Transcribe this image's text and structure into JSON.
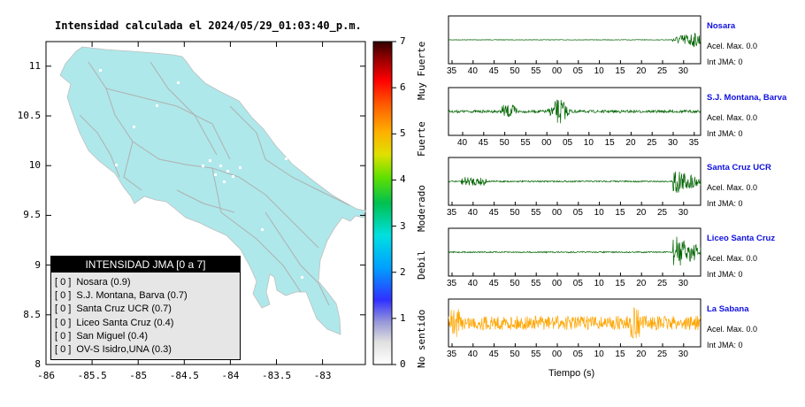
{
  "map": {
    "title": "Intensidad calculada el 2024/05/29_01:03:40_p.m.",
    "lon_ticks": [
      "-86",
      "-85.5",
      "-85",
      "-84.5",
      "-84",
      "-83.5",
      "-83"
    ],
    "lat_ticks": [
      "8",
      "8.5",
      "9",
      "9.5",
      "10",
      "10.5",
      "11"
    ],
    "land_color": "#aee8ea"
  },
  "colorbar": {
    "ticks": [
      "0",
      "1",
      "2",
      "3",
      "4",
      "5",
      "6",
      "7"
    ],
    "categories": [
      "No sentido",
      "Debil",
      "Moderado",
      "Fuerte",
      "Muy Fuerte"
    ]
  },
  "legend": {
    "title": "INTENSIDAD JMA [0 a 7]",
    "items": [
      {
        "jma": "[ 0 ]",
        "station": "Nosara (0.9)"
      },
      {
        "jma": "[ 0 ]",
        "station": "S.J. Montana, Barva (0.7)"
      },
      {
        "jma": "[ 0 ]",
        "station": "Santa Cruz UCR (0.7)"
      },
      {
        "jma": "[ 0 ]",
        "station": "Liceo Santa Cruz (0.4)"
      },
      {
        "jma": "[ 0 ]",
        "station": "San Miguel (0.4)"
      },
      {
        "jma": "[ 0 ]",
        "station": "OV-S Isidro,UNA (0.3)"
      }
    ]
  },
  "traces": [
    {
      "name": "Nosara",
      "acel": "Acel. Max. 0.0",
      "jma": "Int JMA: 0",
      "color": "#006400",
      "ticks": [
        "35",
        "40",
        "45",
        "50",
        "55",
        "00",
        "05",
        "10",
        "15",
        "20",
        "25",
        "30"
      ]
    },
    {
      "name": "S.J. Montana, Barva",
      "acel": "Acel. Max. 0.0",
      "jma": "Int JMA: 0",
      "color": "#006400",
      "ticks": [
        "40",
        "45",
        "50",
        "55",
        "00",
        "05",
        "10",
        "15",
        "20",
        "25",
        "30",
        "35"
      ]
    },
    {
      "name": "Santa Cruz UCR",
      "acel": "Acel. Max. 0.0",
      "jma": "Int JMA: 0",
      "color": "#006400",
      "ticks": [
        "35",
        "40",
        "45",
        "50",
        "55",
        "00",
        "05",
        "10",
        "15",
        "20",
        "25",
        "30"
      ]
    },
    {
      "name": "Liceo Santa Cruz",
      "acel": "Acel. Max. 0.0",
      "jma": "Int JMA: 0",
      "color": "#006400",
      "ticks": [
        "35",
        "40",
        "45",
        "50",
        "55",
        "00",
        "05",
        "10",
        "15",
        "20",
        "25",
        "30"
      ]
    },
    {
      "name": "La Sabana",
      "acel": "Acel. Max. 0.0",
      "jma": "Int JMA: 0",
      "color": "#ffa500",
      "ticks": [
        "35",
        "40",
        "45",
        "50",
        "55",
        "00",
        "05",
        "10",
        "15",
        "20",
        "25",
        "30"
      ]
    }
  ],
  "xlabel": "Tiempo (s)"
}
